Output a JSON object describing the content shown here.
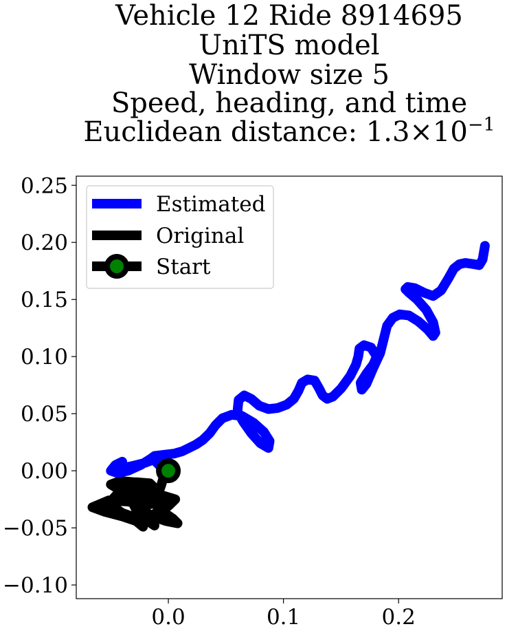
{
  "chart_data": {
    "type": "line",
    "title_lines": [
      "Vehicle 12 Ride 8914695",
      "UniTS model",
      "Window size 5",
      "Speed, heading, and time"
    ],
    "metric_label": "Euclidean distance: ",
    "metric_mantissa": "1.3",
    "metric_times": "×",
    "metric_base": "10",
    "metric_exponent": "−1",
    "xlim": [
      -0.08,
      0.29
    ],
    "ylim": [
      -0.112,
      0.258
    ],
    "x_ticks": [
      0.0,
      0.1,
      0.2
    ],
    "x_tick_labels": [
      "0.0",
      "0.1",
      "0.2"
    ],
    "y_ticks": [
      -0.1,
      -0.05,
      0.0,
      0.05,
      0.1,
      0.15,
      0.2,
      0.25
    ],
    "y_tick_labels": [
      "−0.10",
      "−0.05",
      "0.00",
      "0.05",
      "0.10",
      "0.15",
      "0.20",
      "0.25"
    ],
    "grid": false,
    "legend_position": "top-left",
    "series": [
      {
        "name": "Estimated",
        "color": "#0000ff",
        "x": [
          0.0,
          -0.007,
          -0.012,
          -0.01,
          -0.006,
          -0.012,
          -0.02,
          -0.032,
          -0.042,
          -0.048,
          -0.045,
          -0.04,
          -0.046,
          -0.05,
          -0.044,
          -0.035,
          -0.024,
          -0.016,
          -0.012,
          -0.004,
          0.005,
          0.012,
          0.018,
          0.024,
          0.03,
          0.036,
          0.041,
          0.047,
          0.055,
          0.064,
          0.074,
          0.083,
          0.088,
          0.087,
          0.08,
          0.072,
          0.065,
          0.06,
          0.061,
          0.066,
          0.072,
          0.079,
          0.087,
          0.095,
          0.103,
          0.109,
          0.113,
          0.116,
          0.121,
          0.127,
          0.131,
          0.134,
          0.138,
          0.143,
          0.15,
          0.158,
          0.163,
          0.165,
          0.166,
          0.17,
          0.176,
          0.181,
          0.178,
          0.172,
          0.167,
          0.168,
          0.172,
          0.178,
          0.184,
          0.187,
          0.19,
          0.195,
          0.201,
          0.209,
          0.217,
          0.225,
          0.23,
          0.232,
          0.23,
          0.224,
          0.216,
          0.209,
          0.206,
          0.208,
          0.214,
          0.222,
          0.23,
          0.237,
          0.243,
          0.248,
          0.253,
          0.258,
          0.265,
          0.27,
          0.273,
          0.275
        ],
        "y": [
          0.0,
          0.004,
          0.009,
          0.013,
          0.012,
          0.01,
          0.007,
          0.004,
          0.002,
          0.001,
          0.005,
          0.008,
          0.005,
          0.0,
          -0.002,
          0.0,
          0.005,
          0.01,
          0.013,
          0.014,
          0.015,
          0.017,
          0.02,
          0.023,
          0.027,
          0.033,
          0.04,
          0.046,
          0.049,
          0.048,
          0.042,
          0.034,
          0.026,
          0.02,
          0.024,
          0.033,
          0.043,
          0.052,
          0.062,
          0.066,
          0.063,
          0.057,
          0.054,
          0.055,
          0.058,
          0.063,
          0.07,
          0.077,
          0.08,
          0.079,
          0.072,
          0.066,
          0.063,
          0.065,
          0.072,
          0.083,
          0.093,
          0.1,
          0.107,
          0.11,
          0.108,
          0.1,
          0.093,
          0.085,
          0.077,
          0.071,
          0.076,
          0.09,
          0.103,
          0.115,
          0.127,
          0.134,
          0.137,
          0.136,
          0.131,
          0.124,
          0.118,
          0.121,
          0.13,
          0.141,
          0.15,
          0.156,
          0.159,
          0.161,
          0.16,
          0.156,
          0.153,
          0.158,
          0.168,
          0.177,
          0.181,
          0.182,
          0.181,
          0.18,
          0.185,
          0.197
        ]
      },
      {
        "name": "Original",
        "color": "#000000",
        "x": [
          0.0,
          -0.004,
          -0.006,
          -0.008,
          -0.018,
          -0.03,
          -0.042,
          -0.05,
          -0.04,
          -0.025,
          -0.012,
          -0.008,
          -0.02,
          -0.035,
          -0.052,
          -0.066,
          -0.055,
          -0.04,
          -0.028,
          -0.022,
          -0.025,
          -0.03,
          -0.02,
          -0.01,
          -0.018,
          -0.03,
          -0.044,
          -0.052,
          -0.04,
          -0.026,
          -0.013,
          -0.005,
          0.001,
          0.006,
          -0.004,
          -0.018,
          -0.027,
          -0.034,
          -0.038,
          -0.028,
          -0.016,
          -0.01,
          -0.012,
          -0.006,
          0.004,
          0.008,
          -0.002,
          -0.014,
          -0.021,
          -0.03,
          -0.037,
          -0.026,
          -0.014,
          -0.006,
          0.0,
          -0.006,
          -0.012,
          -0.018,
          -0.012
        ],
        "y": [
          0.0,
          -0.005,
          -0.012,
          -0.018,
          -0.014,
          -0.01,
          -0.009,
          -0.012,
          -0.018,
          -0.02,
          -0.022,
          -0.028,
          -0.03,
          -0.027,
          -0.026,
          -0.032,
          -0.036,
          -0.04,
          -0.044,
          -0.049,
          -0.04,
          -0.03,
          -0.022,
          -0.016,
          -0.013,
          -0.015,
          -0.02,
          -0.029,
          -0.037,
          -0.042,
          -0.04,
          -0.035,
          -0.03,
          -0.025,
          -0.022,
          -0.023,
          -0.026,
          -0.022,
          -0.015,
          -0.01,
          -0.011,
          -0.017,
          -0.025,
          -0.035,
          -0.042,
          -0.046,
          -0.044,
          -0.04,
          -0.035,
          -0.029,
          -0.024,
          -0.021,
          -0.02,
          -0.023,
          -0.028,
          -0.032,
          -0.038,
          -0.044,
          -0.048
        ]
      }
    ],
    "start_point": {
      "name": "Start",
      "x": 0.0,
      "y": 0.0,
      "edge_color": "#000000",
      "face_color": "#008000"
    }
  }
}
